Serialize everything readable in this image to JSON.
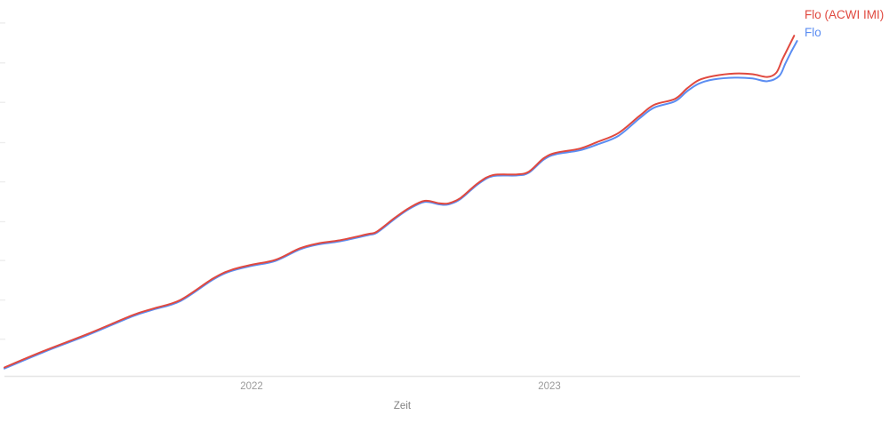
{
  "chart_data": {
    "type": "line",
    "title": "",
    "xlabel": "Zeit",
    "ylabel": "",
    "x_range": [
      2021.17,
      2023.84
    ],
    "y_range": [
      0,
      104
    ],
    "x_ticks": [
      2022,
      2023
    ],
    "x_tick_labels": [
      "2022",
      "2023"
    ],
    "y_axis_labeled": false,
    "y_tick_positions": [
      10.4,
      21.5,
      32.7,
      43.7,
      55.0,
      66.1,
      77.5,
      88.7,
      100
    ],
    "grid": false,
    "legend_position": "top-right",
    "axis_color": "#e6e6e6",
    "tick_color": "#ededed",
    "series": [
      {
        "name": "Flo (ACWI IMI)",
        "color": "#e0493f",
        "points": [
          [
            2021.17,
            2.4
          ],
          [
            2021.3,
            7.0
          ],
          [
            2021.45,
            11.9
          ],
          [
            2021.6,
            17.2
          ],
          [
            2021.67,
            19.1
          ],
          [
            2021.76,
            21.5
          ],
          [
            2021.87,
            27.6
          ],
          [
            2021.93,
            30.0
          ],
          [
            2022.0,
            31.5
          ],
          [
            2022.08,
            32.9
          ],
          [
            2022.16,
            36.1
          ],
          [
            2022.22,
            37.5
          ],
          [
            2022.3,
            38.5
          ],
          [
            2022.39,
            40.2
          ],
          [
            2022.42,
            40.9
          ],
          [
            2022.48,
            44.8
          ],
          [
            2022.53,
            47.7
          ],
          [
            2022.58,
            49.6
          ],
          [
            2022.63,
            48.9
          ],
          [
            2022.66,
            48.9
          ],
          [
            2022.7,
            50.4
          ],
          [
            2022.76,
            54.7
          ],
          [
            2022.81,
            56.9
          ],
          [
            2022.89,
            57.1
          ],
          [
            2022.93,
            57.9
          ],
          [
            2022.98,
            61.7
          ],
          [
            2023.02,
            63.2
          ],
          [
            2023.1,
            64.4
          ],
          [
            2023.16,
            66.3
          ],
          [
            2023.23,
            68.8
          ],
          [
            2023.3,
            73.6
          ],
          [
            2023.35,
            76.8
          ],
          [
            2023.42,
            78.5
          ],
          [
            2023.46,
            81.4
          ],
          [
            2023.5,
            83.8
          ],
          [
            2023.55,
            85.0
          ],
          [
            2023.62,
            85.7
          ],
          [
            2023.68,
            85.5
          ],
          [
            2023.73,
            84.7
          ],
          [
            2023.76,
            85.9
          ],
          [
            2023.78,
            89.6
          ],
          [
            2023.8,
            93.0
          ],
          [
            2023.82,
            96.4
          ]
        ]
      },
      {
        "name": "Flo",
        "color": "#5b8df2",
        "points": [
          [
            2021.17,
            2.1
          ],
          [
            2021.3,
            6.7
          ],
          [
            2021.45,
            11.6
          ],
          [
            2021.6,
            16.9
          ],
          [
            2021.67,
            18.8
          ],
          [
            2021.76,
            21.2
          ],
          [
            2021.87,
            27.3
          ],
          [
            2021.93,
            29.7
          ],
          [
            2022.0,
            31.2
          ],
          [
            2022.08,
            32.6
          ],
          [
            2022.16,
            35.8
          ],
          [
            2022.22,
            37.2
          ],
          [
            2022.3,
            38.2
          ],
          [
            2022.39,
            39.9
          ],
          [
            2022.42,
            40.6
          ],
          [
            2022.48,
            44.5
          ],
          [
            2022.53,
            47.4
          ],
          [
            2022.58,
            49.3
          ],
          [
            2022.63,
            48.6
          ],
          [
            2022.66,
            48.6
          ],
          [
            2022.7,
            50.1
          ],
          [
            2022.76,
            54.4
          ],
          [
            2022.81,
            56.6
          ],
          [
            2022.89,
            56.8
          ],
          [
            2022.93,
            57.6
          ],
          [
            2022.98,
            61.3
          ],
          [
            2023.02,
            62.8
          ],
          [
            2023.1,
            63.9
          ],
          [
            2023.16,
            65.6
          ],
          [
            2023.23,
            68.0
          ],
          [
            2023.3,
            72.9
          ],
          [
            2023.35,
            76.0
          ],
          [
            2023.42,
            77.8
          ],
          [
            2023.46,
            80.6
          ],
          [
            2023.5,
            82.8
          ],
          [
            2023.55,
            84.0
          ],
          [
            2023.62,
            84.5
          ],
          [
            2023.68,
            84.3
          ],
          [
            2023.73,
            83.5
          ],
          [
            2023.77,
            85.0
          ],
          [
            2023.79,
            88.4
          ],
          [
            2023.81,
            91.8
          ],
          [
            2023.83,
            94.9
          ]
        ]
      }
    ]
  }
}
